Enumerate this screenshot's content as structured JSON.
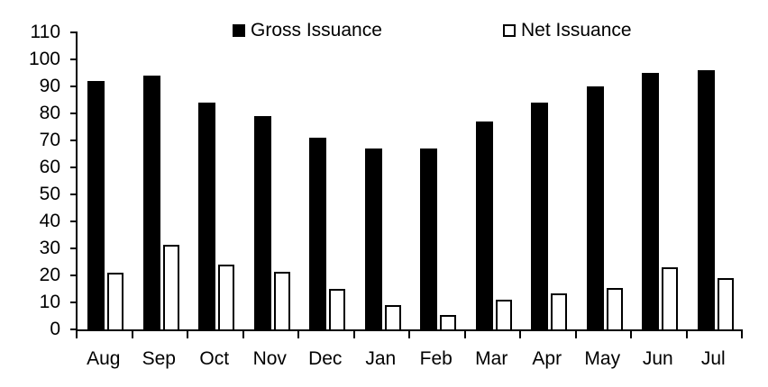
{
  "chart_data": {
    "type": "bar",
    "title": "",
    "xlabel": "",
    "ylabel": "",
    "categories": [
      "Aug",
      "Sep",
      "Oct",
      "Nov",
      "Dec",
      "Jan",
      "Feb",
      "Mar",
      "Apr",
      "May",
      "Jun",
      "Jul"
    ],
    "series": [
      {
        "name": "Gross Issuance",
        "values": [
          92,
          94,
          84,
          79,
          71,
          67,
          67,
          77,
          84,
          90,
          95,
          96
        ],
        "fill": "#000000",
        "border": "#000000"
      },
      {
        "name": "Net Issuance",
        "values": [
          21,
          31.5,
          24,
          21.5,
          15,
          9,
          5.5,
          11,
          13.5,
          15.5,
          23,
          19
        ],
        "fill": "#ffffff",
        "border": "#000000"
      }
    ],
    "ylim": [
      0,
      110
    ],
    "y_ticks": [
      0,
      10,
      20,
      30,
      40,
      50,
      60,
      70,
      80,
      90,
      100,
      110
    ],
    "grid": false,
    "legend_position": "top",
    "axis_color": "#000000",
    "background_color": "#ffffff"
  }
}
